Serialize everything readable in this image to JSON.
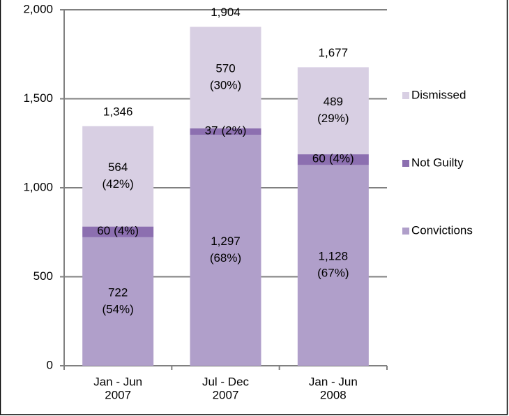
{
  "chart_data": {
    "type": "stacked_bar",
    "categories": [
      [
        "Jan - Jun",
        "2007"
      ],
      [
        "Jul - Dec",
        "2007"
      ],
      [
        "Jan - Jun",
        "2008"
      ]
    ],
    "series": [
      {
        "name": "Convictions",
        "color": "#b09fca",
        "values": [
          722,
          1297,
          1128
        ],
        "value_labels": [
          "722",
          "1,297",
          "1,128"
        ],
        "percent_labels": [
          "(54%)",
          "(68%)",
          "(67%)"
        ]
      },
      {
        "name": "Not Guilty",
        "color": "#8c6fb0",
        "values": [
          60,
          37,
          60
        ],
        "value_labels": [
          "60",
          "37",
          "60"
        ],
        "percent_labels": [
          "(4%)",
          "(2%)",
          "(4%)"
        ]
      },
      {
        "name": "Dismissed",
        "color": "#d8cfe3",
        "values": [
          564,
          570,
          489
        ],
        "value_labels": [
          "564",
          "570",
          "489"
        ],
        "percent_labels": [
          "(42%)",
          "(30%)",
          "(29%)"
        ]
      }
    ],
    "totals": [
      1346,
      1904,
      1677
    ],
    "total_labels": [
      "1,346",
      "1,904",
      "1,677"
    ],
    "ylim": [
      0,
      2000
    ],
    "yticks": [
      0,
      500,
      {
        "value": 1000,
        "label": "1,000"
      },
      {
        "value": 1500,
        "label": "1,500"
      },
      {
        "value": 2000,
        "label": "2,000"
      }
    ],
    "grid": true,
    "legend": "right"
  }
}
